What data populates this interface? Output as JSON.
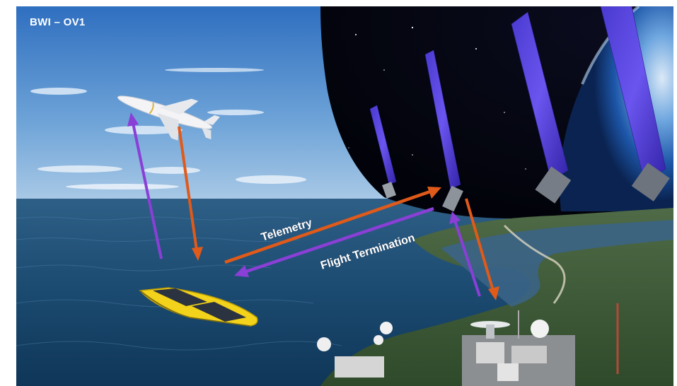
{
  "title": "BWI – OV1",
  "labels": {
    "telemetry": "Telemetry",
    "flight_termination": "Flight Termination"
  },
  "colors": {
    "uplink_arrow": "#8a3fd6",
    "downlink_arrow": "#e05a1a",
    "sky": "#3f83cf",
    "ocean": "#1d4f78",
    "space": "#05060f",
    "solar_panel": "#5a3fd8",
    "vessel_hull": "#f2d21a"
  },
  "icons": {
    "aircraft": "missile-drone-icon",
    "vessel": "autonomous-surface-vessel-icon",
    "satellite": "satellite-icon",
    "ground_station": "ground-station-icon"
  }
}
